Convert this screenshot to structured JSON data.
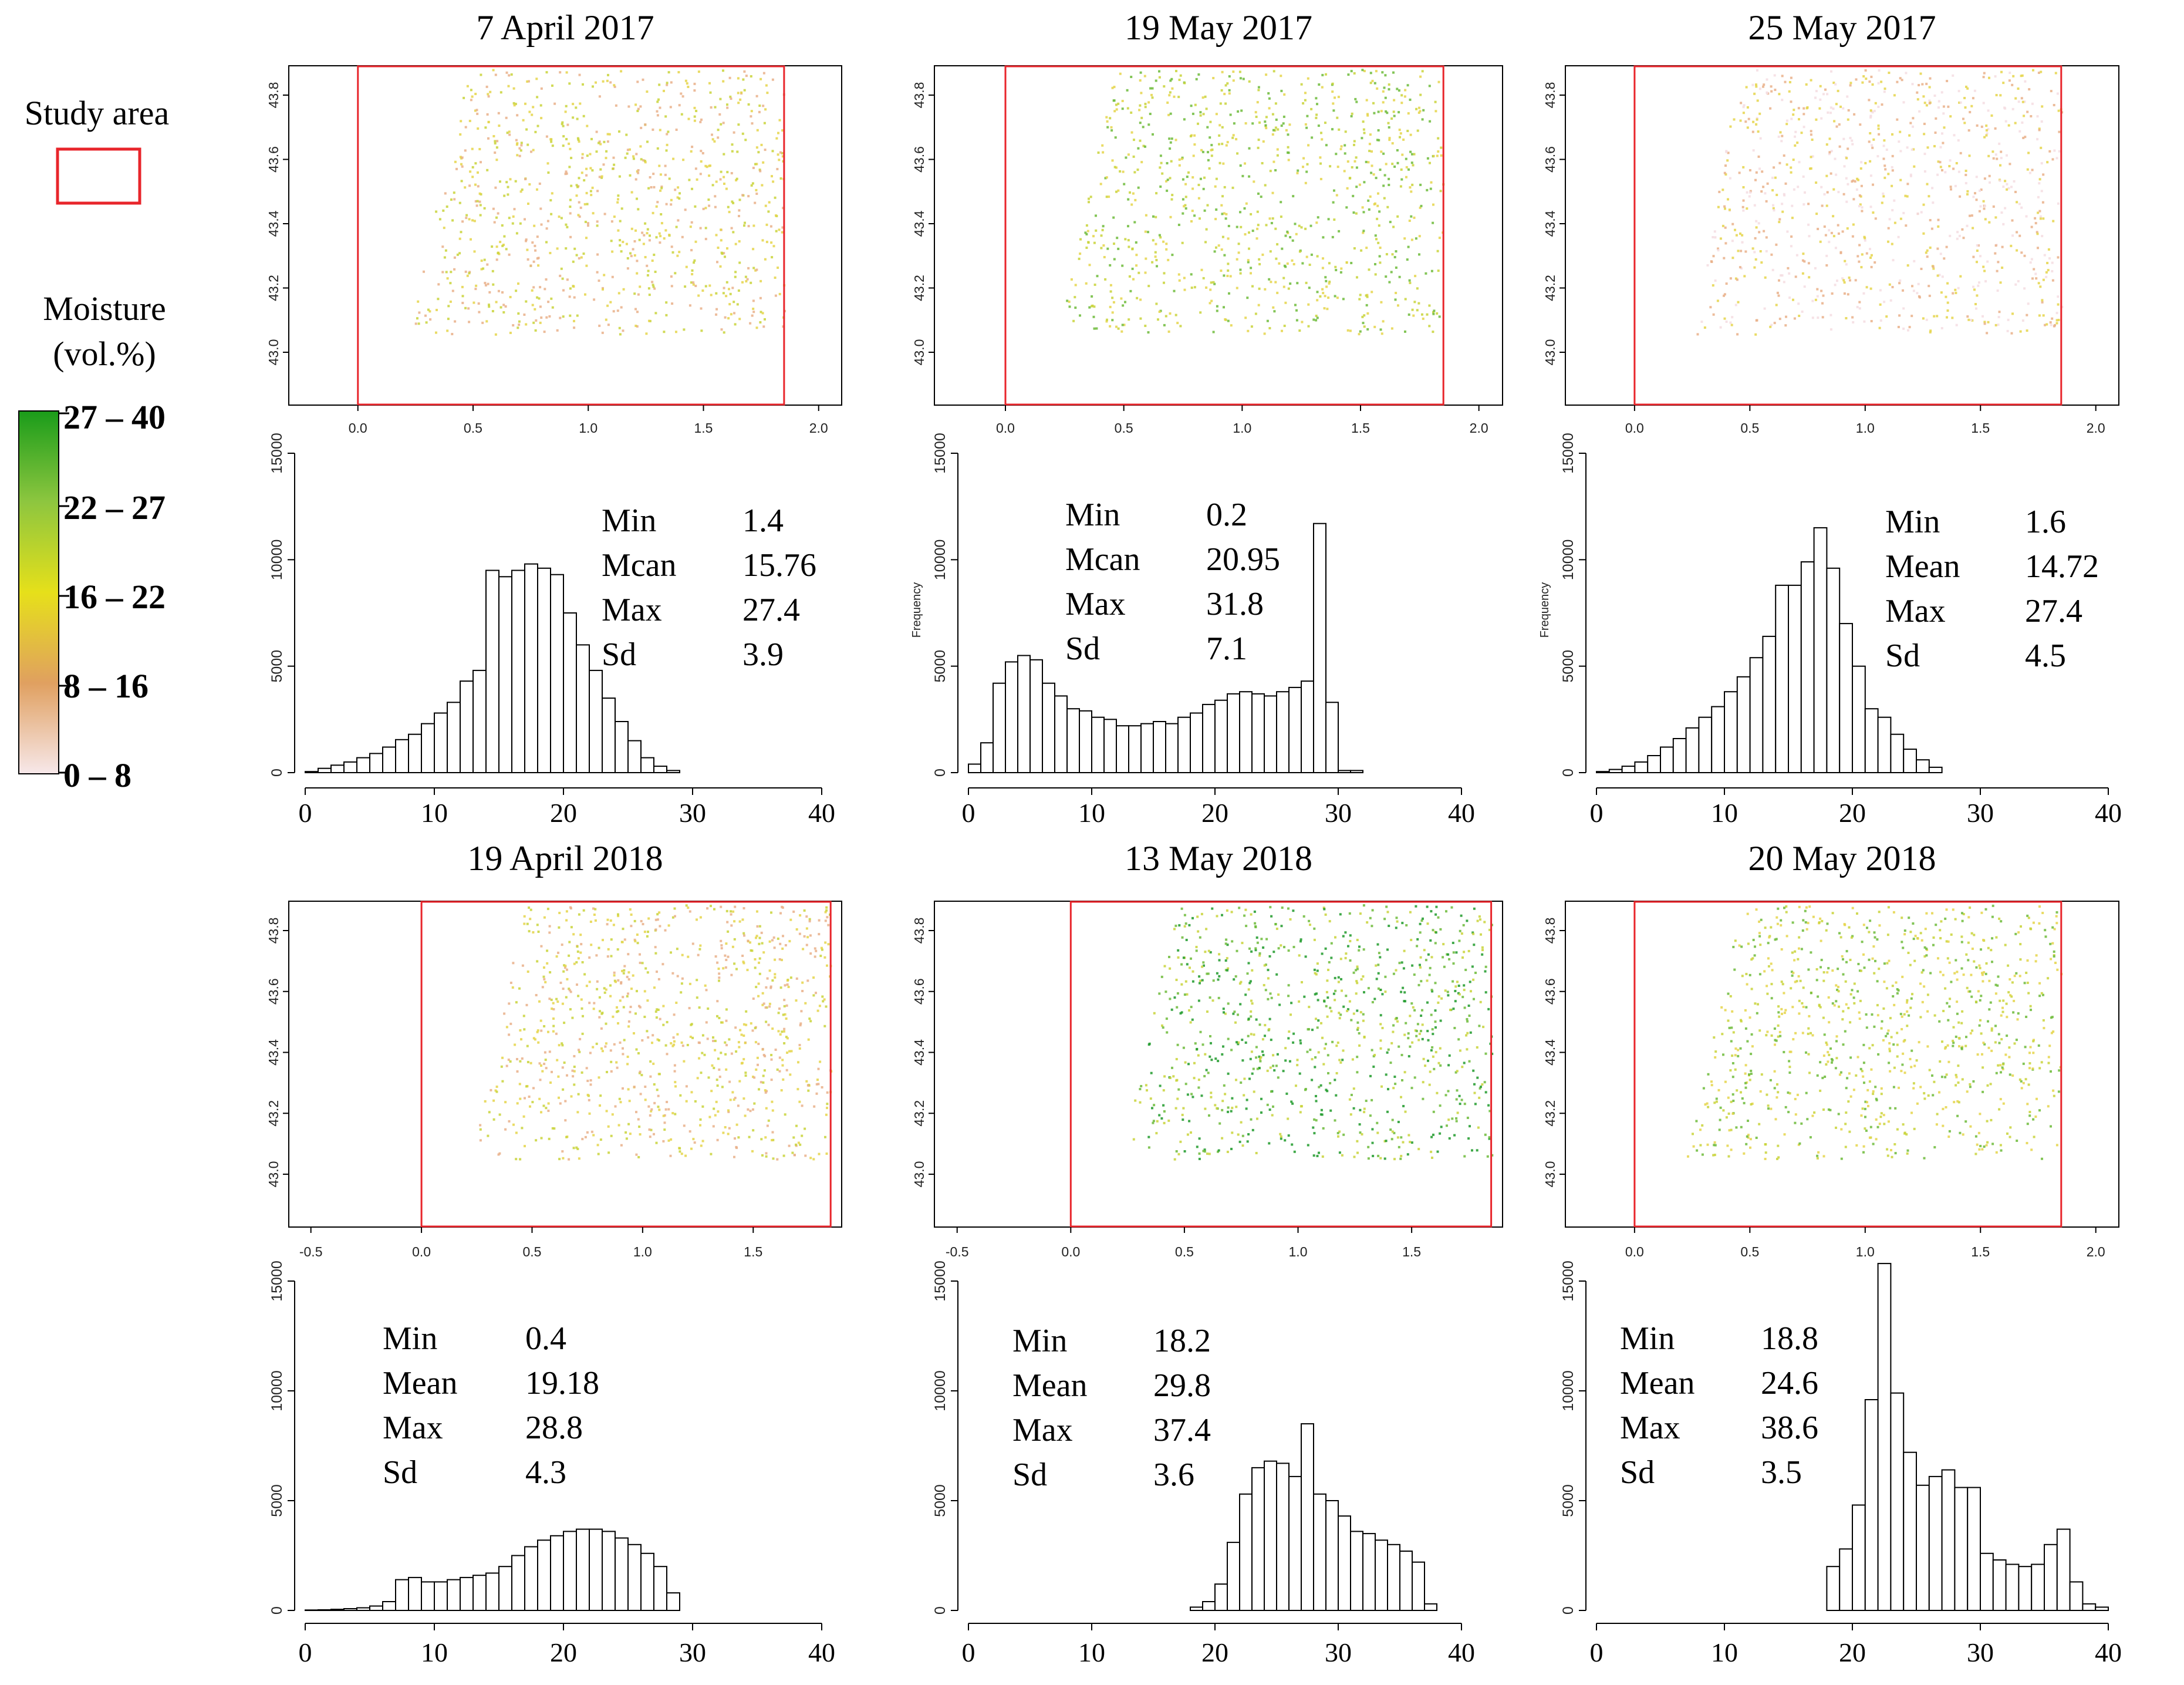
{
  "legend": {
    "study_area_label": "Study area",
    "moisture_label_line1": "Moisture",
    "moisture_label_line2": "(vol.%)",
    "classes": [
      "27 – 40",
      "22 – 27",
      "16 – 22",
      "8 – 16",
      "0 – 8"
    ],
    "gradient_colors": [
      "#1a9c1a",
      "#8dc63f",
      "#e6e01a",
      "#e0a060",
      "#f7e8ea"
    ],
    "study_area_color": "#e8252b"
  },
  "axes": {
    "map_lat_ticks": [
      "43.0",
      "43.2",
      "43.4",
      "43.6",
      "43.8"
    ],
    "hist_y_ticks": [
      "0",
      "5000",
      "10000",
      "15000"
    ],
    "hist_x_ticks": [
      "0",
      "10",
      "20",
      "30",
      "40"
    ],
    "frequency_label": "Frequency"
  },
  "stat_labels": [
    "Min",
    "Mean",
    "Max",
    "Sd"
  ],
  "chart_data": [
    {
      "type": "bar",
      "title": "7 April 2017",
      "map_x_ticks": [
        "0.0",
        "0.5",
        "1.0",
        "1.5",
        "2.0"
      ],
      "x_range": [
        -0.3,
        2.1
      ],
      "show_ylabel": false,
      "stats_label_override": "Mcan",
      "stats": {
        "min": "1.4",
        "mean": "15.76",
        "max": "27.4",
        "sd": "3.9"
      },
      "bin_width": 1,
      "bin_start": 0,
      "values": [
        50,
        200,
        350,
        500,
        700,
        900,
        1200,
        1550,
        1800,
        2300,
        2800,
        3300,
        4300,
        4800,
        9500,
        9200,
        9500,
        9800,
        9600,
        9300,
        7500,
        6000,
        4800,
        3500,
        2400,
        1500,
        700,
        300,
        100
      ]
    },
    {
      "type": "bar",
      "title": "19 May 2017",
      "map_x_ticks": [
        "0.0",
        "0.5",
        "1.0",
        "1.5",
        "2.0"
      ],
      "x_range": [
        -0.3,
        2.1
      ],
      "show_ylabel": true,
      "stats_label_override": "Mcan",
      "stats": {
        "min": "0.2",
        "mean": "20.95",
        "max": "31.8",
        "sd": "7.1"
      },
      "bin_width": 1,
      "bin_start": 0,
      "values": [
        400,
        1400,
        4200,
        5200,
        5500,
        5300,
        4200,
        3600,
        3000,
        2900,
        2600,
        2500,
        2200,
        2200,
        2300,
        2400,
        2300,
        2600,
        2800,
        3200,
        3400,
        3700,
        3800,
        3700,
        3600,
        3800,
        4000,
        4300,
        11700,
        3300,
        100,
        100
      ]
    },
    {
      "type": "bar",
      "title": "25 May 2017",
      "map_x_ticks": [
        "0.0",
        "0.5",
        "1.0",
        "1.5",
        "2.0"
      ],
      "x_range": [
        -0.3,
        2.1
      ],
      "show_ylabel": true,
      "stats_label_override": null,
      "stats": {
        "min": "1.6",
        "mean": "14.72",
        "max": "27.4",
        "sd": "4.5"
      },
      "bin_width": 1,
      "bin_start": 0,
      "values": [
        50,
        150,
        300,
        500,
        800,
        1200,
        1600,
        2100,
        2600,
        3100,
        3800,
        4500,
        5400,
        6400,
        8800,
        8800,
        9900,
        11500,
        9600,
        7000,
        5000,
        3000,
        2600,
        1800,
        1100,
        600,
        250
      ]
    },
    {
      "type": "bar",
      "title": "19 April 2018",
      "map_x_ticks": [
        "-0.5",
        "0.0",
        "0.5",
        "1.0",
        "1.5"
      ],
      "x_range": [
        -0.6,
        1.9
      ],
      "show_ylabel": false,
      "stats_label_override": null,
      "stats": {
        "min": "0.4",
        "mean": "19.18",
        "max": "28.8",
        "sd": "4.3"
      },
      "bin_width": 1,
      "bin_start": 0,
      "values": [
        20,
        30,
        50,
        80,
        120,
        200,
        400,
        1400,
        1500,
        1300,
        1300,
        1400,
        1500,
        1600,
        1700,
        2000,
        2500,
        2900,
        3200,
        3400,
        3600,
        3700,
        3700,
        3600,
        3300,
        3000,
        2600,
        2000,
        800
      ]
    },
    {
      "type": "bar",
      "title": "13 May 2018",
      "map_x_ticks": [
        "-0.5",
        "0.0",
        "0.5",
        "1.0",
        "1.5"
      ],
      "x_range": [
        -0.6,
        1.9
      ],
      "show_ylabel": false,
      "stats_label_override": null,
      "stats": {
        "min": "18.2",
        "mean": "29.8",
        "max": "37.4",
        "sd": "3.6"
      },
      "bin_width": 1,
      "bin_start": 18,
      "values": [
        150,
        400,
        1200,
        3100,
        5300,
        6500,
        6800,
        6700,
        6100,
        8500,
        5300,
        5000,
        4300,
        3600,
        3500,
        3200,
        3000,
        2700,
        2200,
        300
      ]
    },
    {
      "type": "bar",
      "title": "20 May 2018",
      "map_x_ticks": [
        "0.0",
        "0.5",
        "1.0",
        "1.5",
        "2.0"
      ],
      "x_range": [
        -0.3,
        2.1
      ],
      "show_ylabel": false,
      "stats_label_override": null,
      "stats": {
        "min": "18.8",
        "mean": "24.6",
        "max": "38.6",
        "sd": "3.5"
      },
      "bin_width": 1,
      "bin_start": 18,
      "values": [
        2000,
        2800,
        4800,
        9600,
        15800,
        9900,
        7200,
        5700,
        6100,
        6400,
        5600,
        5600,
        2600,
        2300,
        2100,
        2000,
        2100,
        3000,
        3700,
        1300,
        300,
        150
      ]
    }
  ]
}
